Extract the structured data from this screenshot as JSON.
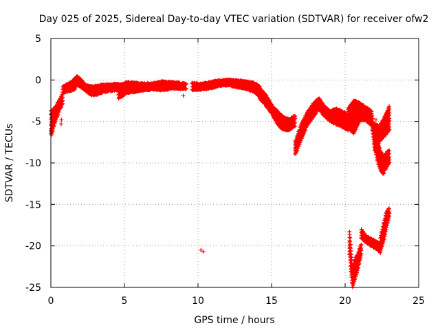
{
  "chart_data": {
    "type": "scatter",
    "title": "Day 025 of 2025, Sidereal Day-to-day VTEC variation (SDTVAR) for receiver ofw2",
    "xlabel": "GPS time / hours",
    "ylabel": "SDTVAR / TECUs",
    "xlim": [
      0,
      25
    ],
    "ylim": [
      -25,
      5
    ],
    "xticks": [
      0,
      5,
      10,
      15,
      20,
      25
    ],
    "yticks": [
      5,
      0,
      -5,
      -10,
      -15,
      -20,
      -25
    ],
    "grid": true,
    "marker": "plus",
    "color": "#ff0000",
    "series": [
      {
        "name": "SDTVAR",
        "bands": [
          {
            "x": [
              0.0,
              0.2,
              0.4,
              0.6,
              0.8
            ],
            "lo": [
              -6.8,
              -5.5,
              -4.5,
              -3.5,
              -2.8
            ],
            "hi": [
              -3.8,
              -3.5,
              -3.0,
              -2.3,
              -1.7
            ]
          },
          {
            "x": [
              0.8,
              1.2,
              1.6,
              1.8,
              2.0,
              2.4,
              2.8,
              3.2,
              3.6,
              4.0,
              4.4,
              4.8
            ],
            "lo": [
              -1.5,
              -1.3,
              -1.2,
              -0.5,
              -0.8,
              -1.4,
              -1.8,
              -1.7,
              -1.4,
              -1.3,
              -1.2,
              -1.2
            ],
            "hi": [
              -0.8,
              -0.5,
              0.1,
              0.4,
              0.1,
              -0.7,
              -0.8,
              -0.7,
              -0.6,
              -0.6,
              -0.5,
              -0.6
            ]
          },
          {
            "x": [
              4.6,
              5.2,
              5.8,
              6.4,
              7.0,
              7.6,
              8.2,
              8.8,
              9.2
            ],
            "lo": [
              -2.2,
              -1.5,
              -1.4,
              -1.2,
              -1.1,
              -1.2,
              -1.0,
              -1.0,
              -1.0
            ],
            "hi": [
              -0.7,
              -0.3,
              -0.4,
              -0.5,
              -0.4,
              -0.2,
              -0.3,
              -0.4,
              -0.5
            ]
          },
          {
            "x": [
              9.6,
              10.2,
              10.8,
              11.4,
              12.0,
              12.6,
              13.2,
              13.8,
              14.2
            ],
            "lo": [
              -1.2,
              -1.1,
              -1.0,
              -0.7,
              -0.6,
              -0.8,
              -1.0,
              -1.4,
              -2.0
            ],
            "hi": [
              -0.4,
              -0.5,
              -0.3,
              -0.1,
              0.0,
              -0.1,
              -0.2,
              -0.4,
              -0.8
            ]
          },
          {
            "x": [
              14.2,
              14.6,
              15.0,
              15.4,
              15.8,
              16.2,
              16.6
            ],
            "lo": [
              -2.2,
              -3.0,
              -4.0,
              -5.3,
              -6.0,
              -6.0,
              -5.5
            ],
            "hi": [
              -1.0,
              -1.8,
              -3.0,
              -3.8,
              -4.5,
              -4.8,
              -4.3
            ]
          },
          {
            "x": [
              16.6,
              17.0,
              17.4,
              17.8,
              18.2,
              18.6,
              19.0,
              19.4,
              19.8,
              20.2
            ],
            "lo": [
              -9.0,
              -7.2,
              -5.5,
              -4.5,
              -3.5,
              -4.3,
              -5.0,
              -5.3,
              -5.6,
              -6.0
            ],
            "hi": [
              -7.5,
              -5.5,
              -4.0,
              -3.0,
              -2.2,
              -3.2,
              -3.8,
              -3.5,
              -3.8,
              -4.2
            ]
          },
          {
            "x": [
              20.2,
              20.6,
              21.0,
              21.4,
              21.8
            ],
            "lo": [
              -5.8,
              -6.4,
              -4.8,
              -4.8,
              -5.5
            ],
            "hi": [
              -3.5,
              -2.5,
              -2.8,
              -3.3,
              -3.8
            ]
          },
          {
            "x": [
              21.8,
              22.0,
              22.2,
              22.4,
              22.6,
              22.8,
              23.0
            ],
            "lo": [
              -5.5,
              -8.0,
              -9.8,
              -10.8,
              -11.3,
              -10.5,
              -10.0
            ],
            "hi": [
              -4.0,
              -6.0,
              -7.5,
              -8.5,
              -9.2,
              -8.8,
              -8.5
            ]
          },
          {
            "x": [
              22.0,
              22.4,
              22.8,
              23.0
            ],
            "lo": [
              -8.5,
              -7.2,
              -6.5,
              -6.0
            ],
            "hi": [
              -5.5,
              -5.5,
              -4.0,
              -3.2
            ]
          },
          {
            "x": [
              20.3,
              20.5,
              20.7,
              20.9,
              21.1
            ],
            "lo": [
              -21.0,
              -25.0,
              -23.8,
              -22.5,
              -21.0
            ],
            "hi": [
              -18.3,
              -22.8,
              -21.5,
              -20.8,
              -19.8
            ]
          },
          {
            "x": [
              21.1,
              21.4,
              21.8,
              22.2,
              22.4
            ],
            "lo": [
              -19.0,
              -19.5,
              -20.0,
              -20.4,
              -20.8
            ],
            "hi": [
              -18.0,
              -18.8,
              -19.2,
              -19.6,
              -19.9
            ]
          },
          {
            "x": [
              22.4,
              22.6,
              22.8,
              23.0
            ],
            "lo": [
              -20.5,
              -19.5,
              -18.0,
              -16.5
            ],
            "hi": [
              -19.0,
              -17.5,
              -16.0,
              -15.5
            ]
          }
        ],
        "points": [
          {
            "x": 0.05,
            "y": -6.5
          },
          {
            "x": 0.1,
            "y": -6.2
          },
          {
            "x": 0.7,
            "y": -5.3
          },
          {
            "x": 0.72,
            "y": -4.8
          },
          {
            "x": 9.0,
            "y": -1.9
          },
          {
            "x": 10.2,
            "y": -20.5
          },
          {
            "x": 10.35,
            "y": -20.7
          },
          {
            "x": 22.0,
            "y": -5.2
          },
          {
            "x": 22.1,
            "y": -4.8
          }
        ]
      }
    ]
  }
}
